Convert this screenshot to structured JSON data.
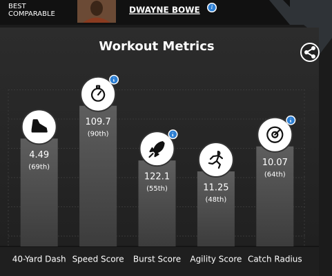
{
  "header": {
    "label_lines": [
      "BEST",
      "COMPARABLE"
    ],
    "player_name": "DWAYNE BOWE"
  },
  "chart_data": {
    "type": "bar",
    "title": "Workout Metrics",
    "categories": [
      "40-Yard Dash",
      "Speed Score",
      "Burst Score",
      "Agility Score",
      "Catch Radius"
    ],
    "metric_values": [
      4.49,
      109.7,
      122.1,
      11.25,
      10.07
    ],
    "values": [
      69,
      90,
      55,
      48,
      64
    ],
    "value_labels": [
      "(69th)",
      "(90th)",
      "(55th)",
      "(48th)",
      "(64th)"
    ],
    "ylim": [
      0,
      100
    ],
    "info_icons": [
      false,
      true,
      true,
      false,
      true
    ]
  }
}
